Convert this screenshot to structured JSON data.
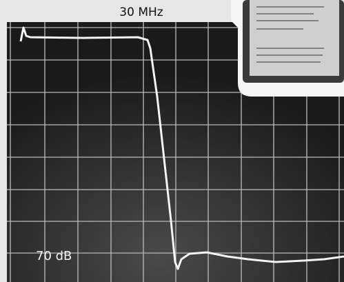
{
  "labels": {
    "top": "30 MHz",
    "bottom": "70 dB"
  }
}
